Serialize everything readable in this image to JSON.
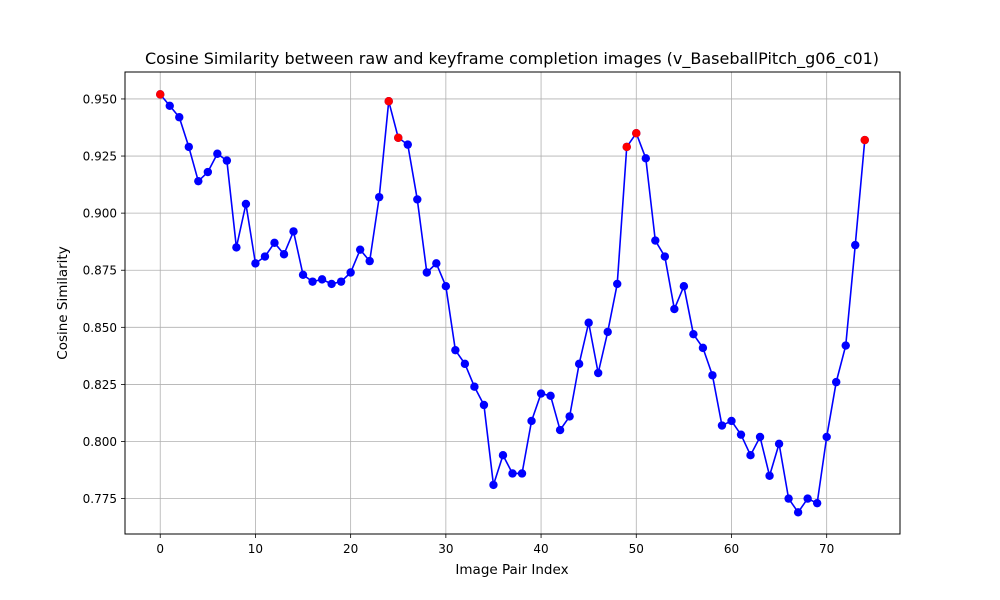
{
  "chart_data": {
    "type": "line",
    "title": "Cosine Similarity between raw and keyframe completion images (v_BaseballPitch_g06_c01)",
    "xlabel": "Image Pair Index",
    "ylabel": "Cosine Similarity",
    "xlim": [
      -3.7,
      77.7
    ],
    "ylim": [
      0.7595,
      0.9618
    ],
    "xticks": [
      0,
      10,
      20,
      30,
      40,
      50,
      60,
      70
    ],
    "yticks": [
      0.775,
      0.8,
      0.825,
      0.85,
      0.875,
      0.9,
      0.925,
      0.95
    ],
    "xtick_labels": [
      "0",
      "10",
      "20",
      "30",
      "40",
      "50",
      "60",
      "70"
    ],
    "ytick_labels": [
      "0.775",
      "0.800",
      "0.825",
      "0.850",
      "0.875",
      "0.900",
      "0.925",
      "0.950"
    ],
    "grid": true,
    "series": [
      {
        "color": "#0000ff",
        "marker_color": "#0000ff",
        "x": [
          0,
          1,
          2,
          3,
          4,
          5,
          6,
          7,
          8,
          9,
          10,
          11,
          12,
          13,
          14,
          15,
          16,
          17,
          18,
          19,
          20,
          21,
          22,
          23,
          24,
          25,
          26,
          27,
          28,
          29,
          30,
          31,
          32,
          33,
          34,
          35,
          36,
          37,
          38,
          39,
          40,
          41,
          42,
          43,
          44,
          45,
          46,
          47,
          48,
          49,
          50,
          51,
          52,
          53,
          54,
          55,
          56,
          57,
          58,
          59,
          60,
          61,
          62,
          63,
          64,
          65,
          66,
          67,
          68,
          69,
          70,
          71,
          72,
          73,
          74
        ],
        "values": [
          0.952,
          0.947,
          0.942,
          0.929,
          0.914,
          0.918,
          0.926,
          0.923,
          0.885,
          0.904,
          0.878,
          0.881,
          0.887,
          0.882,
          0.892,
          0.873,
          0.87,
          0.871,
          0.869,
          0.87,
          0.874,
          0.884,
          0.879,
          0.907,
          0.949,
          0.933,
          0.93,
          0.906,
          0.874,
          0.878,
          0.868,
          0.84,
          0.834,
          0.824,
          0.816,
          0.781,
          0.794,
          0.786,
          0.786,
          0.809,
          0.821,
          0.82,
          0.805,
          0.811,
          0.834,
          0.852,
          0.83,
          0.848,
          0.869,
          0.929,
          0.935,
          0.924,
          0.888,
          0.881,
          0.858,
          0.868,
          0.847,
          0.841,
          0.829,
          0.807,
          0.809,
          0.803,
          0.794,
          0.802,
          0.785,
          0.799,
          0.775,
          0.769,
          0.775,
          0.773,
          0.802,
          0.826,
          0.842,
          0.886,
          0.932
        ]
      }
    ],
    "highlight": {
      "color": "#ff0000",
      "x": [
        0,
        24,
        25,
        49,
        50,
        74
      ],
      "values": [
        0.952,
        0.949,
        0.933,
        0.929,
        0.935,
        0.932
      ]
    }
  }
}
